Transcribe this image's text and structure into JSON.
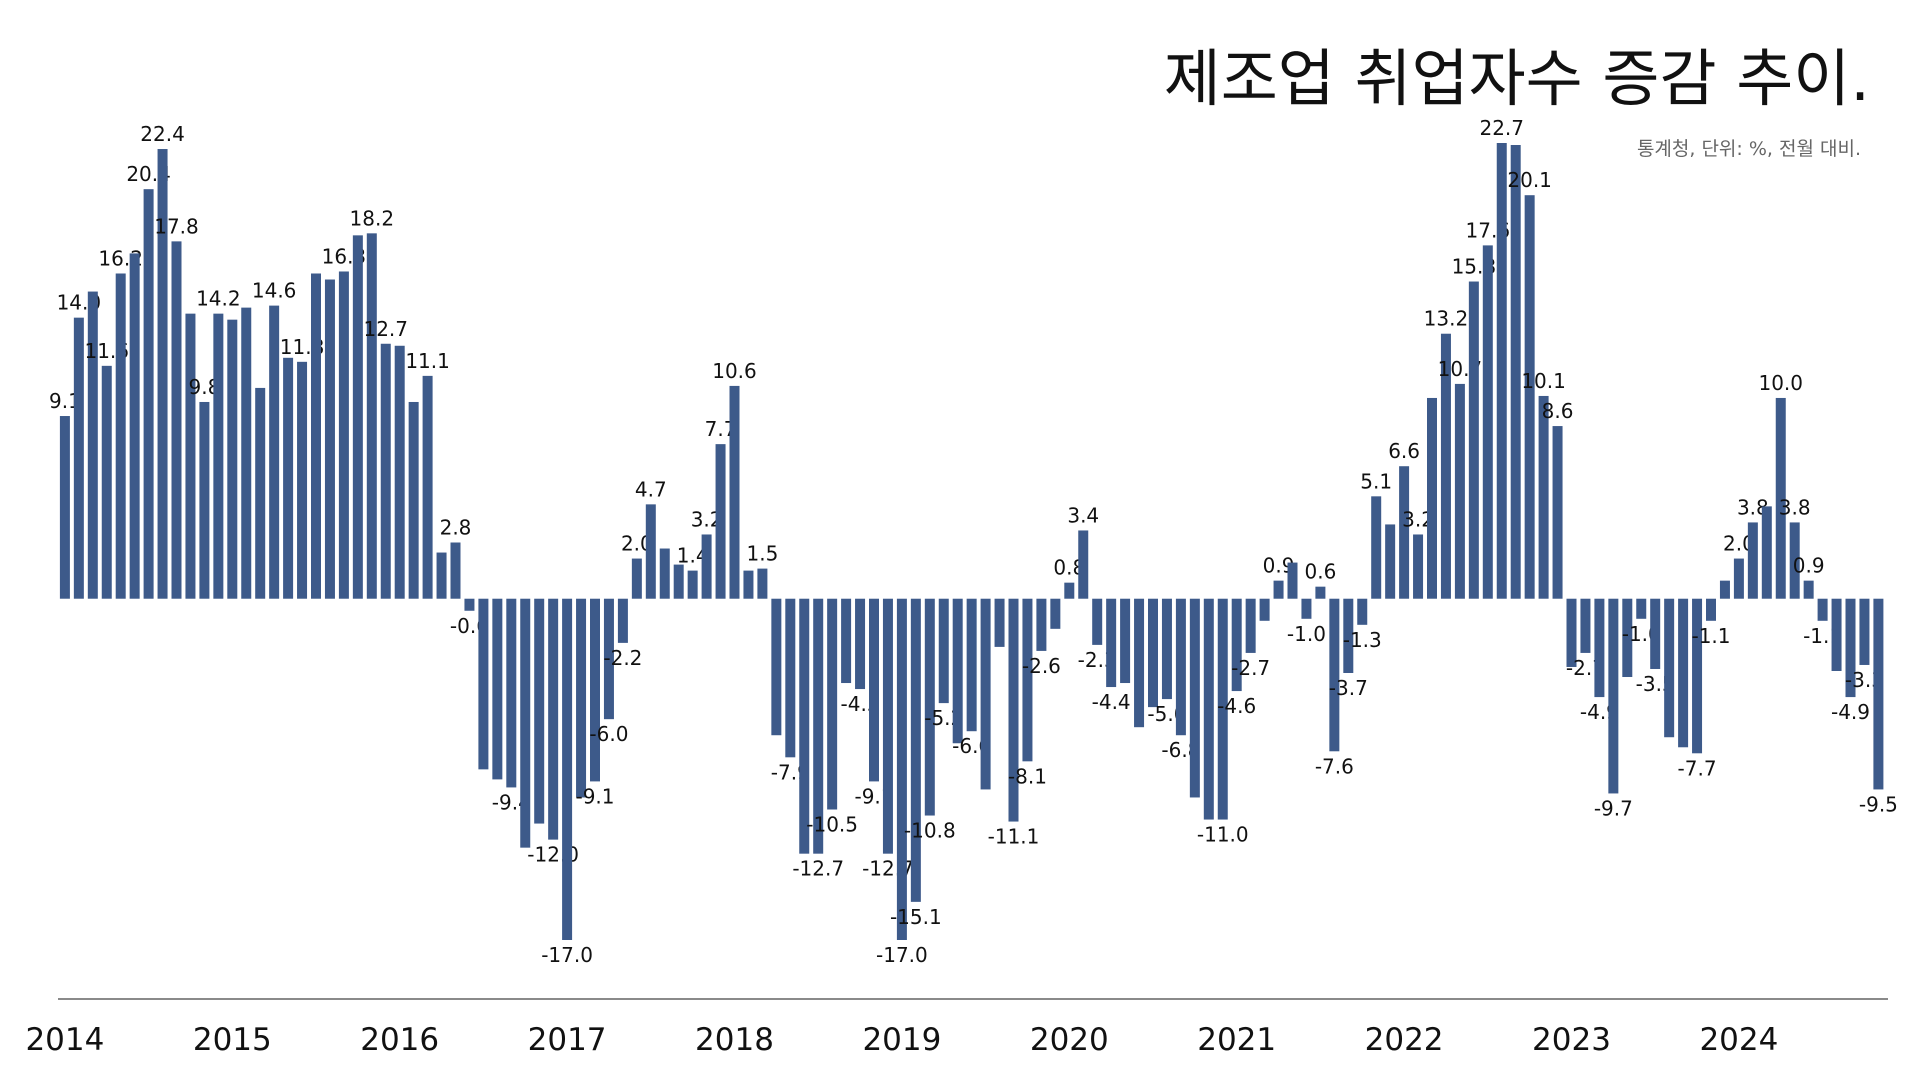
{
  "chart_data": {
    "type": "bar",
    "title": "제조업 취업자수 증감 추이.",
    "subtitle": "통계청, 단위: %, 전월 대비.",
    "color": "#3d5a8a",
    "categories": [
      "2014",
      null,
      null,
      null,
      null,
      null,
      null,
      null,
      null,
      null,
      null,
      null,
      "2015",
      null,
      null,
      null,
      null,
      null,
      null,
      null,
      null,
      null,
      null,
      null,
      "2016",
      null,
      null,
      null,
      null,
      null,
      null,
      null,
      null,
      null,
      null,
      null,
      "2017",
      null,
      null,
      null,
      null,
      null,
      null,
      null,
      null,
      null,
      null,
      null,
      "2018",
      null,
      null,
      null,
      null,
      null,
      null,
      null,
      null,
      null,
      null,
      null,
      "2019",
      null,
      null,
      null,
      null,
      null,
      null,
      null,
      null,
      null,
      null,
      null,
      "2020",
      null,
      null,
      null,
      null,
      null,
      null,
      null,
      null,
      null,
      null,
      null,
      "2021",
      null,
      null,
      null,
      null,
      null,
      null,
      null,
      null,
      null,
      null,
      null,
      "2022",
      null,
      null,
      null,
      null,
      null,
      null,
      null,
      null,
      null,
      null,
      null,
      "2023",
      null,
      null,
      null,
      null,
      null,
      null,
      null,
      null,
      null,
      null,
      null,
      "2024",
      null,
      null,
      null,
      null,
      null,
      null,
      null,
      null,
      null,
      null
    ],
    "values": [
      9.1,
      14.0,
      15.3,
      11.6,
      16.2,
      17.2,
      20.4,
      22.4,
      17.8,
      14.2,
      9.8,
      14.2,
      13.9,
      14.5,
      10.5,
      14.6,
      12.0,
      11.8,
      16.2,
      15.9,
      16.3,
      18.1,
      18.2,
      12.7,
      12.6,
      9.8,
      11.1,
      2.3,
      2.8,
      -0.6,
      -8.5,
      -9.0,
      -9.4,
      -12.4,
      -11.2,
      -12.0,
      -17.0,
      -9.9,
      -9.1,
      -6.0,
      -2.2,
      2.0,
      4.7,
      2.5,
      1.7,
      1.4,
      3.2,
      7.7,
      10.6,
      1.4,
      1.5,
      -6.8,
      -7.9,
      -12.7,
      -12.7,
      -10.5,
      -4.2,
      -4.5,
      -9.1,
      -12.7,
      -17.0,
      -15.1,
      -10.8,
      -5.2,
      -7.2,
      -6.6,
      -9.5,
      -2.4,
      -11.1,
      -8.1,
      -2.6,
      -1.5,
      0.8,
      3.4,
      -2.3,
      -4.4,
      -4.2,
      -6.4,
      -5.4,
      -5.0,
      -6.8,
      -9.9,
      -11.0,
      -11.0,
      -4.6,
      -2.7,
      -1.1,
      0.9,
      1.8,
      -1.0,
      0.6,
      -7.6,
      -3.7,
      -1.3,
      5.1,
      3.7,
      6.6,
      3.2,
      10.0,
      13.2,
      10.7,
      15.8,
      17.6,
      22.7,
      22.6,
      20.1,
      10.1,
      8.6,
      -3.4,
      -2.7,
      -4.9,
      -9.7,
      -3.9,
      -1.0,
      -3.5,
      -6.9,
      -7.4,
      -7.7,
      -1.1,
      0.9,
      2.0,
      3.8,
      4.6,
      10.0,
      3.8,
      0.9,
      -1.1,
      -3.6,
      -4.9,
      -3.3,
      -9.5
    ],
    "value_labels": [
      "9.1",
      "14.0",
      null,
      "11.6",
      "16.2",
      null,
      "20.4",
      "22.4",
      "17.8",
      null,
      "9.8",
      "14.2",
      null,
      null,
      null,
      "14.6",
      null,
      "11.8",
      null,
      null,
      "16.3",
      null,
      "18.2",
      "12.7",
      null,
      null,
      "11.1",
      null,
      "2.8",
      "-0.6",
      null,
      null,
      "-9.4",
      null,
      null,
      "-12.0",
      "-17.0",
      null,
      "-9.1",
      "-6.0",
      "-2.2",
      "2.0",
      "4.7",
      null,
      null,
      "1.4",
      "3.2",
      "7.7",
      "10.6",
      null,
      "1.5",
      null,
      "-7.9",
      null,
      "-12.7",
      "-10.5",
      null,
      "-4.5",
      "-9.1",
      "-12.7",
      "-17.0",
      "-15.1",
      "-10.8",
      "-5.2",
      null,
      "-6.6",
      null,
      null,
      "-11.1",
      "-8.1",
      "-2.6",
      null,
      "0.8",
      "3.4",
      "-2.3",
      "-4.4",
      null,
      null,
      null,
      "-5.0",
      "-6.8",
      null,
      null,
      "-11.0",
      "-4.6",
      "-2.7",
      null,
      "0.9",
      null,
      "-1.0",
      "0.6",
      "-7.6",
      "-3.7",
      "-1.3",
      "5.1",
      null,
      "6.6",
      "3.2",
      null,
      "13.2",
      "10.7",
      "15.8",
      "17.6",
      "22.7",
      null,
      "20.1",
      "10.1",
      "8.6",
      null,
      "-2.7",
      "-4.9",
      "-9.7",
      null,
      "-1.0",
      "-3.5",
      null,
      null,
      "-7.7",
      "-1.1",
      null,
      "2.0",
      "3.8",
      null,
      "10.0",
      "3.8",
      "0.9",
      "-1.1",
      null,
      "-4.9",
      "-3.3",
      "-9.5"
    ]
  }
}
